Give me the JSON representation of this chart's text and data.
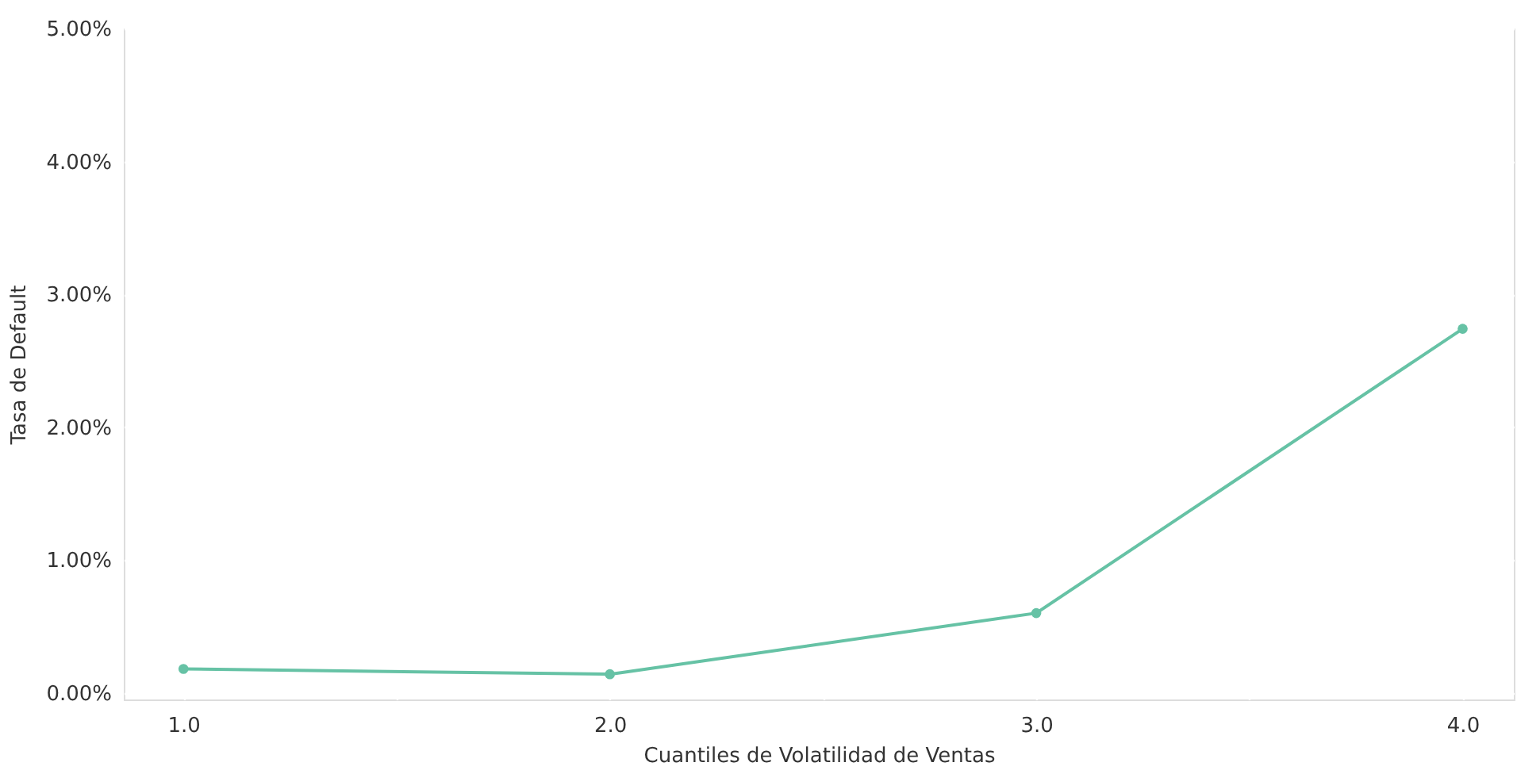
{
  "chart_data": {
    "type": "line",
    "xlabel": "Cuantiles de Volatilidad de Ventas",
    "ylabel": "Tasa de Default",
    "x": [
      1.0,
      2.0,
      3.0,
      4.0
    ],
    "series": [
      {
        "color": "#66c2a5",
        "values": [
          0.18,
          0.14,
          0.6,
          2.74
        ]
      }
    ],
    "xlim": [
      0.86,
      4.12
    ],
    "xticks": [
      {
        "value": 1.0,
        "label": "1.0"
      },
      {
        "value": 1.5,
        "label": null
      },
      {
        "value": 2.0,
        "label": "2.0"
      },
      {
        "value": 2.5,
        "label": null
      },
      {
        "value": 3.0,
        "label": "3.0"
      },
      {
        "value": 3.5,
        "label": null
      },
      {
        "value": 4.0,
        "label": "4.0"
      }
    ],
    "ylim": [
      -0.05,
      5
    ],
    "yticks": [
      {
        "value": 0,
        "label": "0.00%"
      },
      {
        "value": 1,
        "label": "1.00%"
      },
      {
        "value": 2,
        "label": "2.00%"
      },
      {
        "value": 3,
        "label": "3.00%"
      },
      {
        "value": 4,
        "label": "4.00%"
      },
      {
        "value": 5,
        "label": "5.00%"
      }
    ],
    "grid": true,
    "marker": "circle",
    "line_style": "solid"
  }
}
